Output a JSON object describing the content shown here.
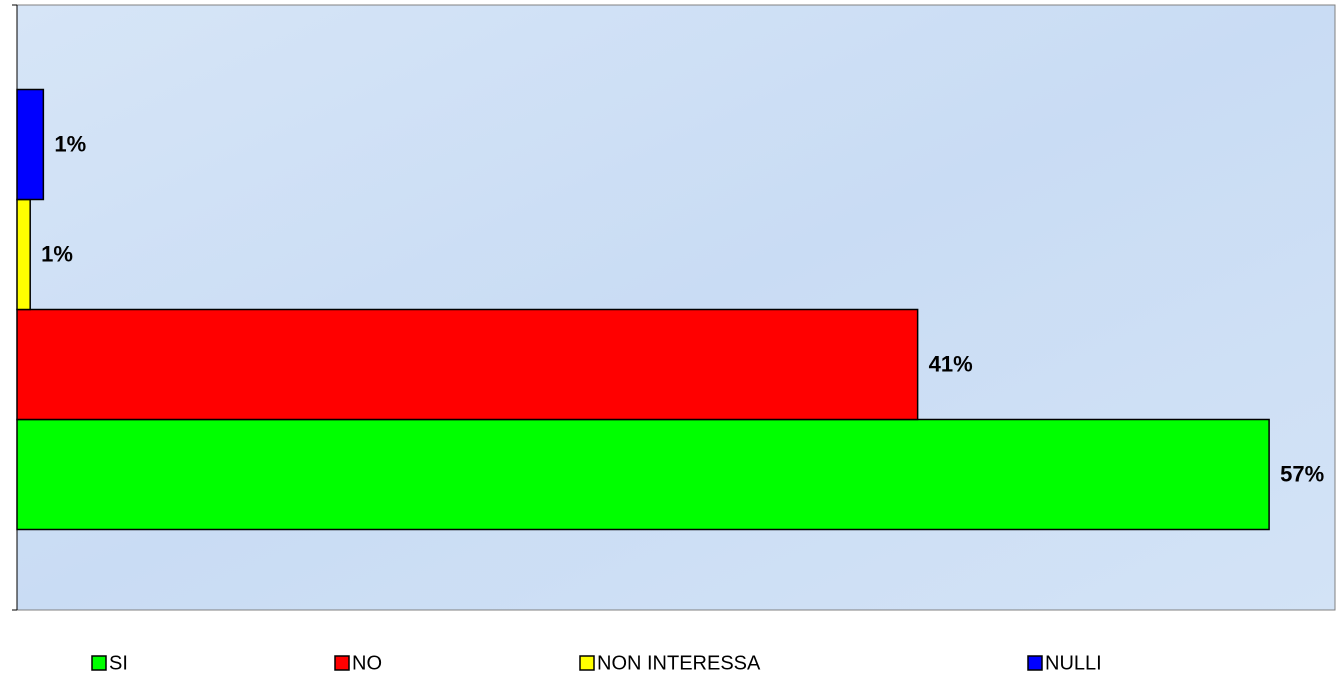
{
  "chart_data": {
    "type": "bar",
    "orientation": "horizontal",
    "series": [
      {
        "name": "SI",
        "color": "#00ff00",
        "values": [
          57
        ],
        "value_labels": [
          "57%"
        ]
      },
      {
        "name": "NO",
        "color": "#ff0000",
        "values": [
          41
        ],
        "value_labels": [
          "41%"
        ]
      },
      {
        "name": "NON INTERESSA",
        "color": "#ffff00",
        "values": [
          0.6
        ],
        "value_labels": [
          "1%"
        ]
      },
      {
        "name": "NULLI",
        "color": "#0000ff",
        "values": [
          1.2
        ],
        "value_labels": [
          "1%"
        ]
      }
    ],
    "xlim": [
      0,
      60
    ],
    "legend": "bottom"
  }
}
